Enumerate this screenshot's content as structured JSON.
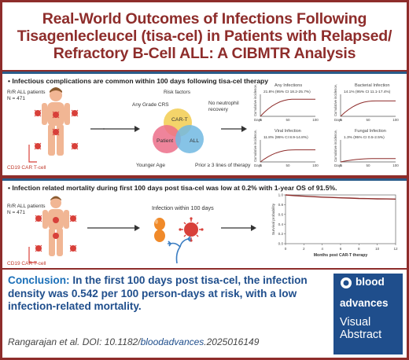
{
  "title": {
    "line1": "Real-World Outcomes of Infections Following",
    "line2": "Tisagenlecleucel (tisa-cel) in Patients with Relapsed/",
    "line3": "Refractory  B-Cell ALL: A CIBMTR Analysis"
  },
  "panel1": {
    "heading": "Infectious complications are common within 100 days following tisa-cel therapy",
    "cohort_line1": "R/R ALL patients",
    "cohort_line2": "N = 471",
    "cart_label": "CD19 CAR T-cell",
    "risk_factors": {
      "label": "Risk factors",
      "any_grade_crs": "Any Grade CRS",
      "no_neutrophil_line1": "No neutrophil",
      "no_neutrophil_line2": "recovery",
      "cart_circle": "CAR-T",
      "patient_circle": "Patient",
      "all_circle": "ALL",
      "younger_age": "Younger Age",
      "prior_therapy": "Prior ≥ 3 lines of therapy",
      "colors": {
        "cart": "#f3cf5a",
        "patient": "#ec6f8a",
        "all": "#71b8e2"
      }
    },
    "mini_charts": [
      {
        "title": "Any Infections",
        "value_text": "21.8% (95% CI 18.2-25.7%)",
        "ylabel": "Cumulative incidence, %",
        "xlabel": "Days",
        "ticks": [
          "0",
          "50",
          "100"
        ],
        "level": 0.78
      },
      {
        "title": "Bacterial Infection",
        "value_text": "14.1% (95% CI 11.1-17.4%)",
        "ylabel": "Cumulative incidence, %",
        "xlabel": "Days",
        "ticks": [
          "0",
          "50",
          "100"
        ],
        "level": 0.7
      },
      {
        "title": "Viral Infection",
        "value_text": "11.8% (95% CI 8.9-14.8%)",
        "ylabel": "Cumulative incidence, %",
        "xlabel": "Days",
        "ticks": [
          "0",
          "50",
          "100"
        ],
        "level": 0.55
      },
      {
        "title": "Fungal Infection",
        "value_text": "1.3% (95% CI 0.5-2.5%)",
        "ylabel": "Cumulative incidence, %",
        "xlabel": "Days",
        "ticks": [
          "0",
          "50",
          "100"
        ],
        "level": 0.15
      }
    ]
  },
  "panel2": {
    "heading": "Infection related mortality during first 100 days post tisa-cel was low at 0.2% with 1-year OS of 91.5%.",
    "cohort_line1": "R/R ALL patients",
    "cohort_line2": "N = 471",
    "cart_label": "CD19 CAR T-cell",
    "infection_label": "Infection within 100 days",
    "chart_data": {
      "type": "line",
      "title": "",
      "xlabel": "Months post CAR-T therapy",
      "ylabel": "Survival probability",
      "x_ticks": [
        "0",
        "2",
        "4",
        "6",
        "8",
        "10",
        "12"
      ],
      "y_ticks": [
        "0.0",
        "0.2",
        "0.4",
        "0.6",
        "0.8",
        "1.0"
      ],
      "xlim": [
        0,
        12
      ],
      "ylim": [
        0,
        1
      ],
      "x": [
        0,
        1,
        2,
        3,
        4,
        5,
        6,
        7,
        8,
        9,
        10,
        11,
        12
      ],
      "y": [
        1.0,
        0.985,
        0.975,
        0.965,
        0.955,
        0.948,
        0.94,
        0.935,
        0.928,
        0.924,
        0.92,
        0.917,
        0.915
      ],
      "color": "#8e2d2b"
    }
  },
  "conclusion": {
    "lead": "Conclusion:",
    "text": " In the first 100 days post tisa-cel, the infection density was 0.542 per 100 person-days at risk, with a low infection-related mortality.",
    "citation_prefix": "Rangarajan et al. DOI: 10.1182/",
    "citation_journal": "bloodadvances",
    "citation_suffix": ".2025016149"
  },
  "badge": {
    "line1": "blood",
    "line2": "advances",
    "line3": "Visual",
    "line4": "Abstract"
  },
  "colors": {
    "frame": "#8e2d2b",
    "panel_border": "#2a5c8a",
    "conclusion_blue": "#1f4e8c",
    "microbe_red": "#d8403a",
    "microbe_orange": "#f08a2a",
    "microbe_blue": "#3a7dc2"
  }
}
